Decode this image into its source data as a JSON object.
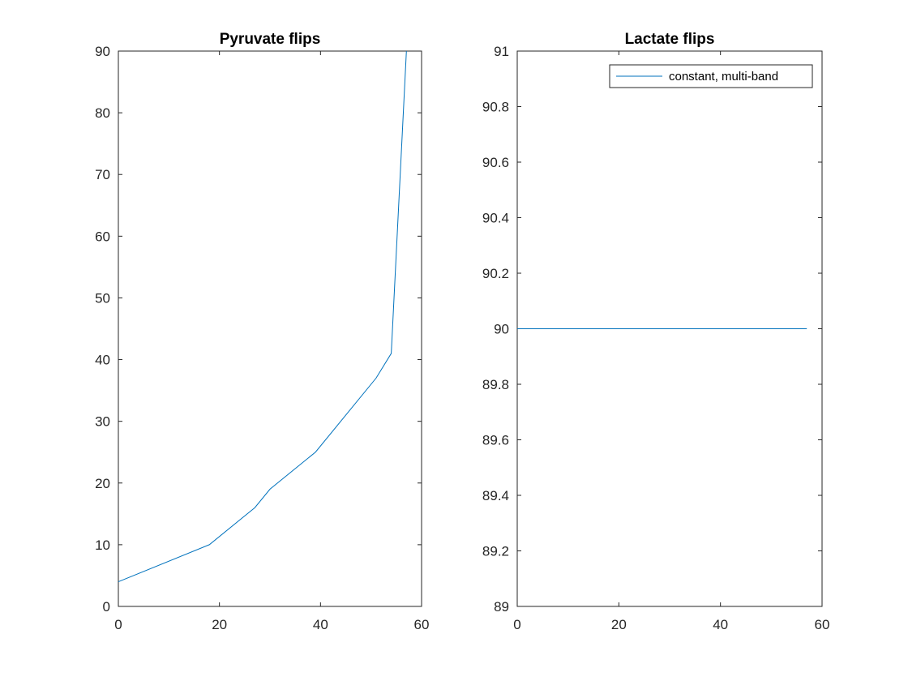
{
  "chart_data": [
    {
      "type": "line",
      "title": "Pyruvate flips",
      "xlim": [
        0,
        60
      ],
      "ylim": [
        0,
        90
      ],
      "xticks": [
        0,
        20,
        40,
        60
      ],
      "yticks": [
        0,
        10,
        20,
        30,
        40,
        50,
        60,
        70,
        80,
        90
      ],
      "grid": false,
      "series": [
        {
          "color": "#0072BD",
          "x": [
            0,
            18,
            27,
            30,
            39,
            51,
            54,
            57
          ],
          "y": [
            4,
            10,
            16,
            19,
            25,
            37,
            41,
            90
          ]
        }
      ]
    },
    {
      "type": "line",
      "title": "Lactate flips",
      "xlim": [
        0,
        60
      ],
      "ylim": [
        89,
        91
      ],
      "xticks": [
        0,
        20,
        40,
        60
      ],
      "yticks": [
        89,
        89.2,
        89.4,
        89.6,
        89.8,
        90,
        90.2,
        90.4,
        90.6,
        90.8,
        91
      ],
      "grid": false,
      "legend": {
        "position": "top-right",
        "entries": [
          "constant, multi-band"
        ]
      },
      "series": [
        {
          "name": "constant, multi-band",
          "color": "#0072BD",
          "x": [
            0,
            57
          ],
          "y": [
            90,
            90
          ]
        }
      ]
    }
  ]
}
